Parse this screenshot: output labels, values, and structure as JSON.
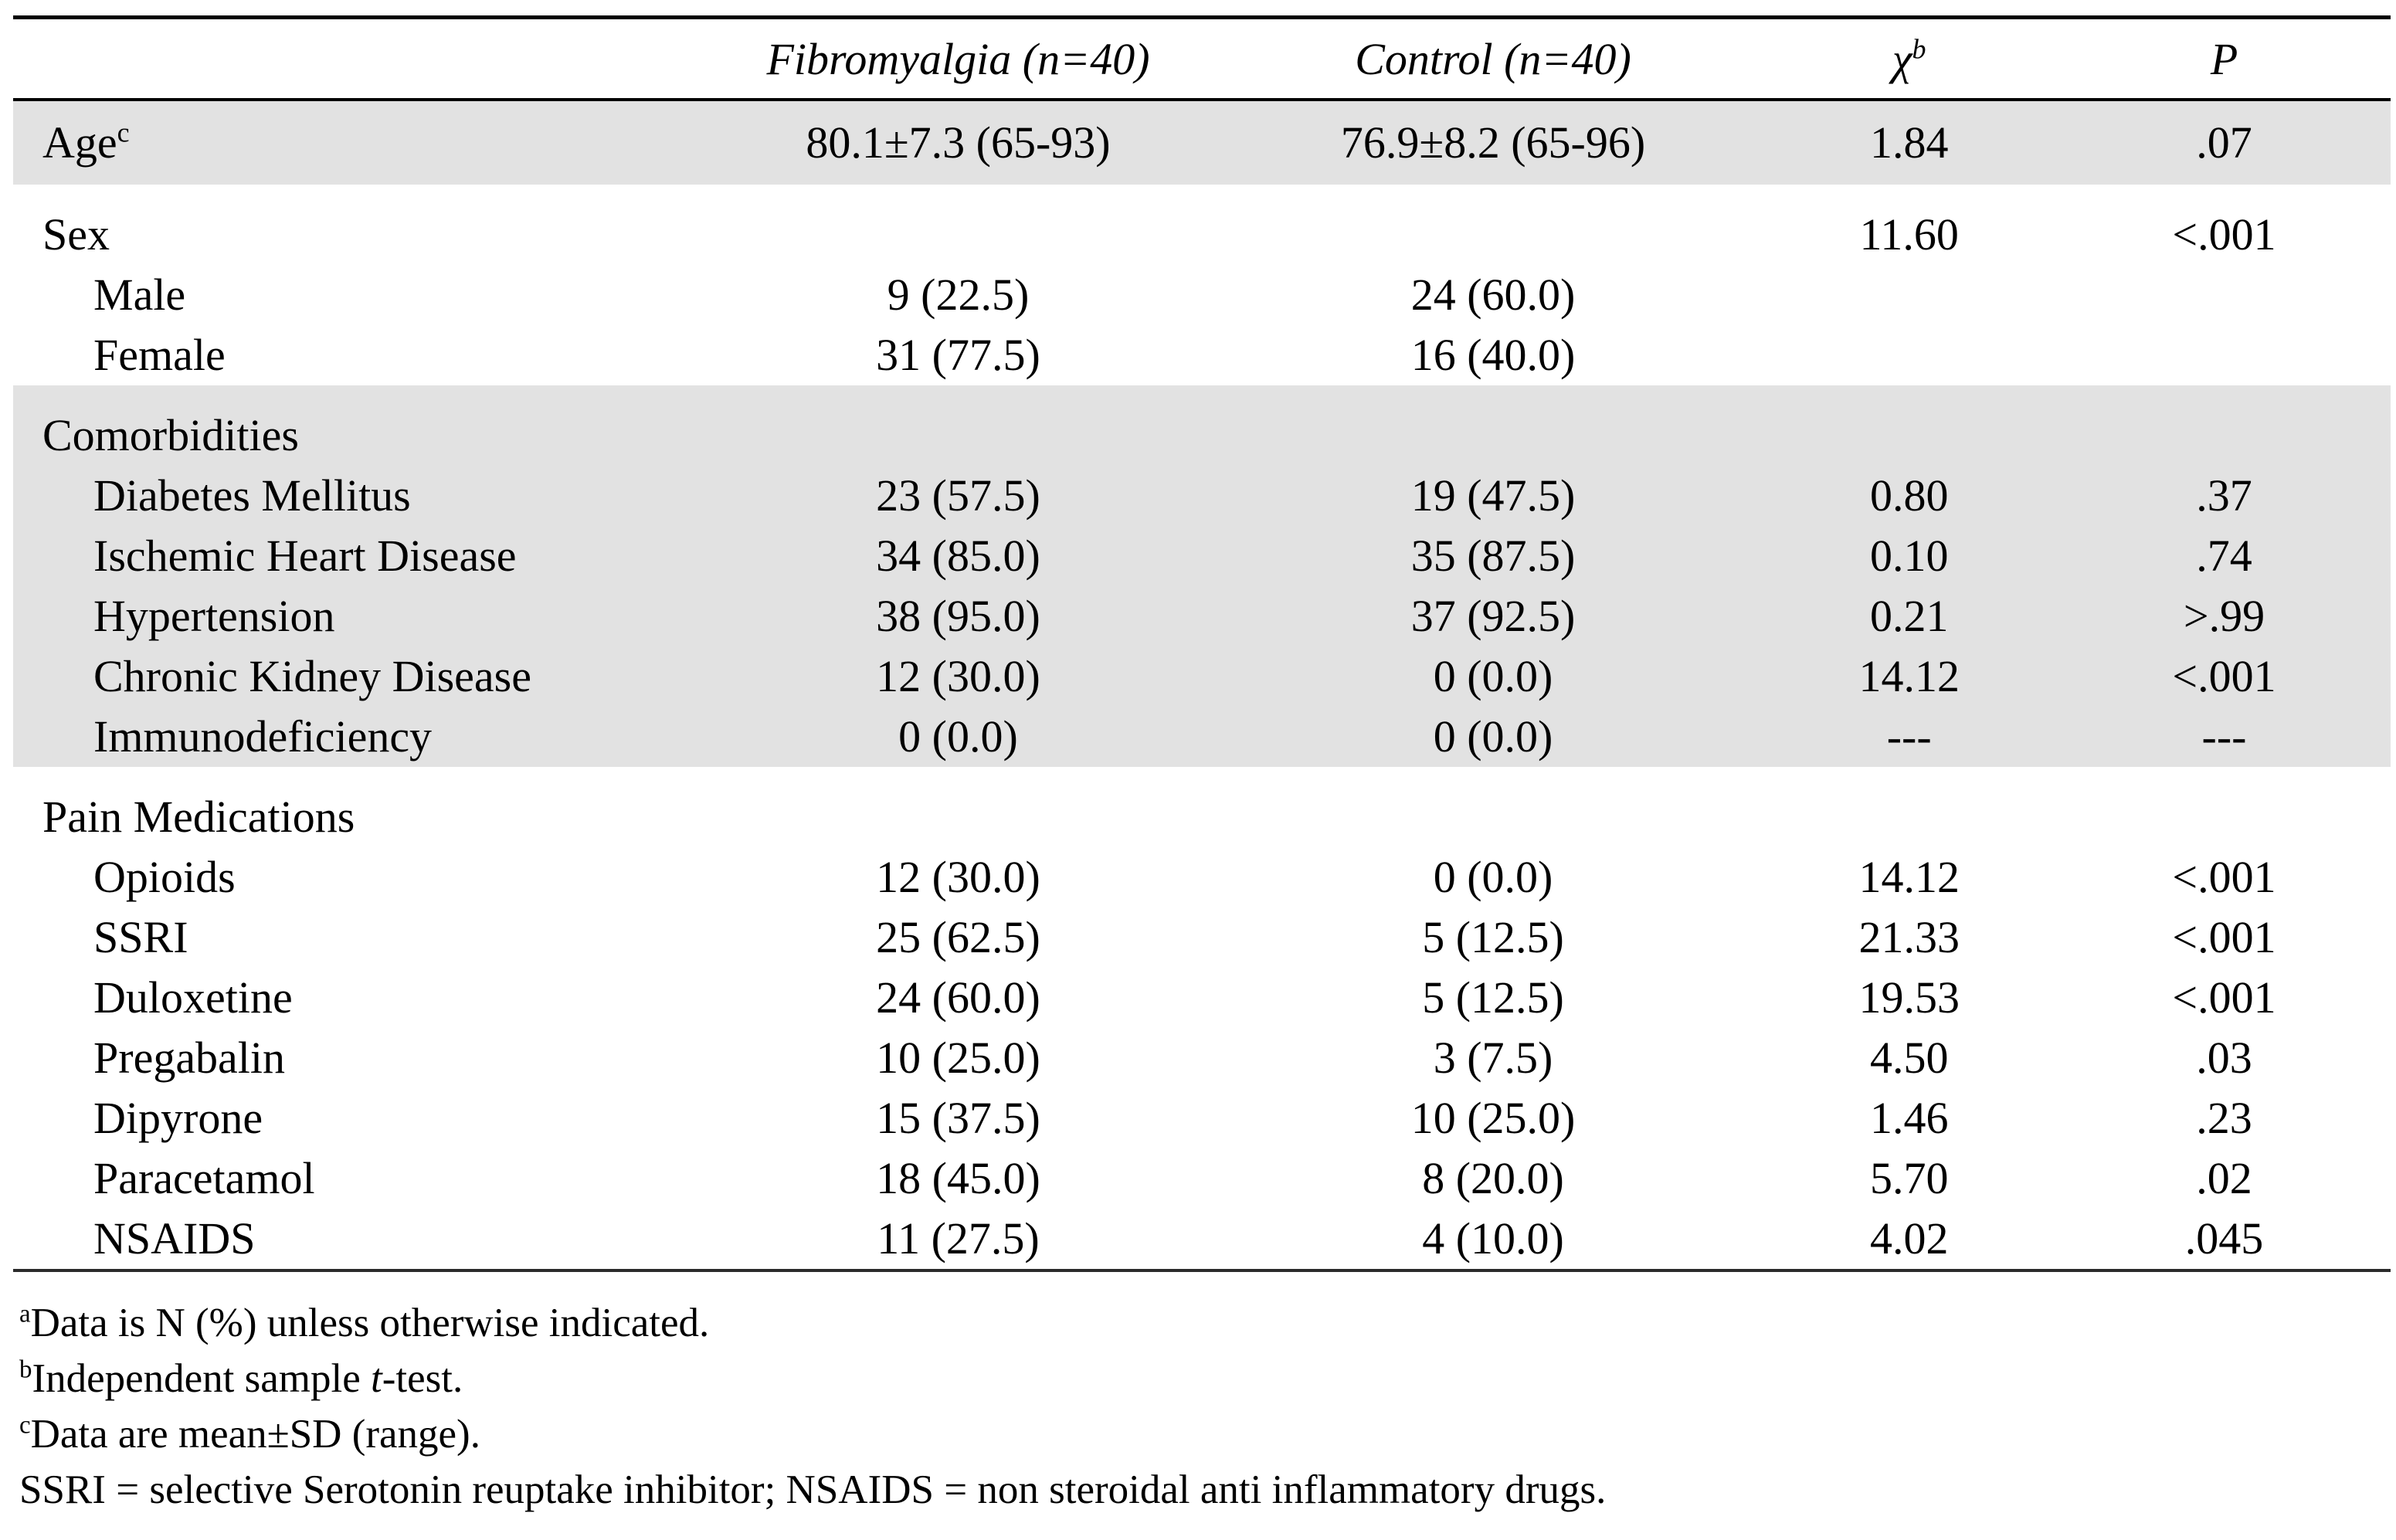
{
  "table": {
    "header": {
      "col_label": "",
      "fibromyalgia": "Fibromyalgia (n=40)",
      "control": "Control (n=40)",
      "chi_base": "χ",
      "chi_sup": "b",
      "p": "P"
    },
    "rows": {
      "age": {
        "label": "Age",
        "sup": "c",
        "fib": "80.1±7.3 (65-93)",
        "control": "76.9±8.2 (65-96)",
        "chi": "1.84",
        "p": ".07"
      },
      "sex": {
        "label": "Sex",
        "chi": "11.60",
        "p": "<.001"
      },
      "male": {
        "label": "Male",
        "fib": "9 (22.5)",
        "control": "24 (60.0)"
      },
      "female": {
        "label": "Female",
        "fib": "31 (77.5)",
        "control": "16 (40.0)"
      },
      "comorbidities": {
        "label": "Comorbidities"
      },
      "diabetes": {
        "label": "Diabetes Mellitus",
        "fib": "23 (57.5)",
        "control": "19 (47.5)",
        "chi": "0.80",
        "p": ".37"
      },
      "ihd": {
        "label": "Ischemic Heart Disease",
        "fib": "34 (85.0)",
        "control": "35 (87.5)",
        "chi": "0.10",
        "p": ".74"
      },
      "hypertension": {
        "label": "Hypertension",
        "fib": "38 (95.0)",
        "control": "37 (92.5)",
        "chi": "0.21",
        "p": ">.99"
      },
      "ckd": {
        "label": "Chronic Kidney Disease",
        "fib": "12 (30.0)",
        "control": "0 (0.0)",
        "chi": "14.12",
        "p": "<.001"
      },
      "immunodeficiency": {
        "label": "Immunodeficiency",
        "fib": "0 (0.0)",
        "control": "0 (0.0)",
        "chi": "---",
        "p": "---"
      },
      "pain_medications": {
        "label": "Pain Medications"
      },
      "opioids": {
        "label": "Opioids",
        "fib": "12 (30.0)",
        "control": "0 (0.0)",
        "chi": "14.12",
        "p": "<.001"
      },
      "ssri": {
        "label": "SSRI",
        "fib": "25 (62.5)",
        "control": "5 (12.5)",
        "chi": "21.33",
        "p": "<.001"
      },
      "duloxetine": {
        "label": "Duloxetine",
        "fib": "24 (60.0)",
        "control": "5 (12.5)",
        "chi": "19.53",
        "p": "<.001"
      },
      "pregabalin": {
        "label": "Pregabalin",
        "fib": "10 (25.0)",
        "control": "3 (7.5)",
        "chi": "4.50",
        "p": ".03"
      },
      "dipyrone": {
        "label": "Dipyrone",
        "fib": "15 (37.5)",
        "control": "10 (25.0)",
        "chi": "1.46",
        "p": ".23"
      },
      "paracetamol": {
        "label": "Paracetamol",
        "fib": "18 (45.0)",
        "control": "8 (20.0)",
        "chi": "5.70",
        "p": ".02"
      },
      "nsaids": {
        "label": "NSAIDS",
        "fib": "11 (27.5)",
        "control": "4 (10.0)",
        "chi": "4.02",
        "p": ".045"
      }
    }
  },
  "footnotes": {
    "a": {
      "sup": "a",
      "text": "Data is N (%) unless otherwise indicated."
    },
    "b": {
      "sup": "b",
      "pre": "Independent sample ",
      "italic": "t",
      "post": "-test."
    },
    "c": {
      "sup": "c",
      "text": "Data are mean±SD (range)."
    },
    "abbreviations": "SSRI = selective Serotonin reuptake inhibitor; NSAIDS = non steroidal anti inflammatory drugs."
  },
  "colors": {
    "row_shade": "#e2e2e2",
    "rule": "#000000"
  }
}
